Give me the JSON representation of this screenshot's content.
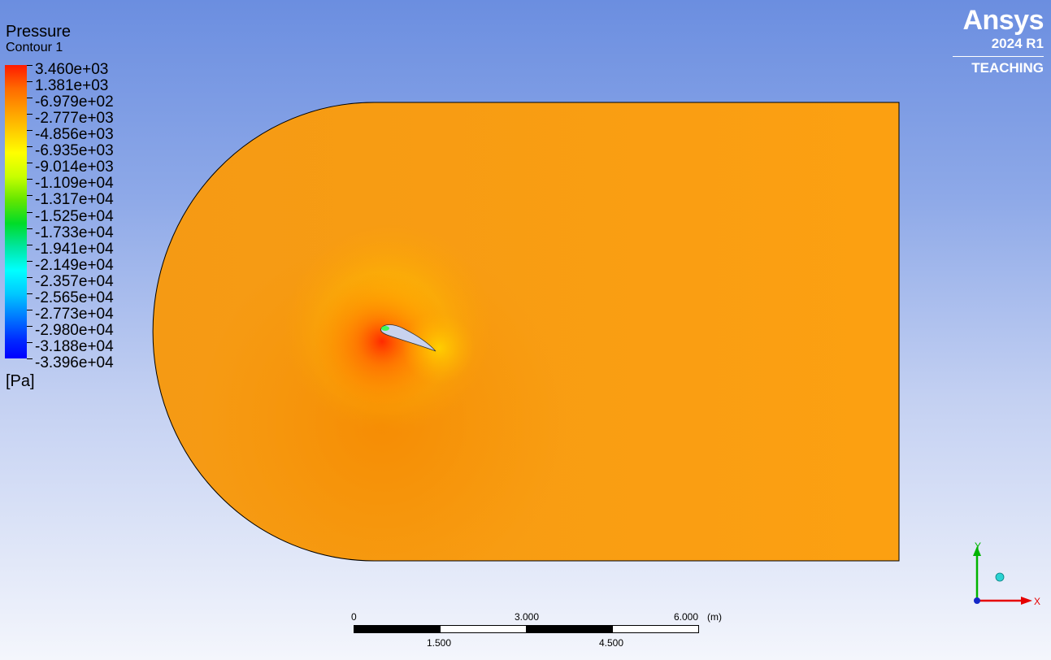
{
  "legend": {
    "title": "Pressure",
    "subtitle": "Contour 1",
    "units": "[Pa]",
    "labels": [
      "3.460e+03",
      "1.381e+03",
      "-6.979e+02",
      "-2.777e+03",
      "-4.856e+03",
      "-6.935e+03",
      "-9.014e+03",
      "-1.109e+04",
      "-1.317e+04",
      "-1.525e+04",
      "-1.733e+04",
      "-1.941e+04",
      "-2.149e+04",
      "-2.357e+04",
      "-2.565e+04",
      "-2.773e+04",
      "-2.980e+04",
      "-3.188e+04",
      "-3.396e+04"
    ]
  },
  "logo": {
    "name": "Ansys",
    "version": "2024 R1",
    "edition": "TEACHING"
  },
  "scale_bar": {
    "top_labels": [
      "0",
      "3.000",
      "6.000"
    ],
    "unit": "(m)",
    "bottom_labels": [
      "1.500",
      "4.500"
    ]
  },
  "axes": {
    "y_label": "Y",
    "x_label": "X"
  },
  "colors": {
    "domain_fill": "#fb9d14",
    "high_pressure": "#ff3c00",
    "low_pressure": "#00ff5a"
  }
}
